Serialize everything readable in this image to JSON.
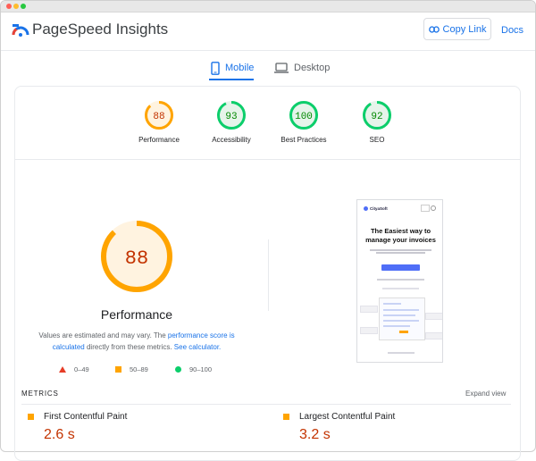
{
  "header": {
    "title": "PageSpeed Insights",
    "copy_link_label": "Copy Link",
    "docs_label": "Docs",
    "copy_icon": "link-icon",
    "logo_icon": "pagespeed-logo-icon"
  },
  "tabs": [
    {
      "label": "Mobile",
      "icon": "smartphone-icon",
      "active": true
    },
    {
      "label": "Desktop",
      "icon": "laptop-icon",
      "active": false
    }
  ],
  "scores": [
    {
      "label": "Performance",
      "score": "88",
      "value": 88,
      "color": "#ffa400",
      "text_color": "#c33300",
      "bg": "#fff3e0"
    },
    {
      "label": "Accessibility",
      "score": "93",
      "value": 93,
      "color": "#0cce6b",
      "text_color": "#008800",
      "bg": "#e6f4ea"
    },
    {
      "label": "Best Practices",
      "score": "100",
      "value": 100,
      "color": "#0cce6b",
      "text_color": "#008800",
      "bg": "#e6f4ea"
    },
    {
      "label": "SEO",
      "score": "92",
      "value": 92,
      "color": "#0cce6b",
      "text_color": "#008800",
      "bg": "#e6f4ea"
    }
  ],
  "performance": {
    "score": "88",
    "value": 88,
    "title": "Performance",
    "desc_prefix": "Values are estimated and may vary. The ",
    "desc_link1": "performance score is calculated",
    "desc_middle": " directly from these metrics. ",
    "desc_link2": "See calculator."
  },
  "legend": {
    "fail": "0–49",
    "average": "50–89",
    "pass": "90–100"
  },
  "preview": {
    "brand": "CityaSoft",
    "headline": "The Easiest way to manage your invoices"
  },
  "metrics": {
    "title": "METRICS",
    "expand_label": "Expand view",
    "items": [
      {
        "name": "First Contentful Paint",
        "value": "2.6 s",
        "status": "average"
      },
      {
        "name": "Largest Contentful Paint",
        "value": "3.2 s",
        "status": "average"
      }
    ]
  },
  "colors": {
    "accent": "#1a73e8",
    "average": "#ffa400",
    "pass": "#0cce6b",
    "fail": "#e63c26"
  }
}
